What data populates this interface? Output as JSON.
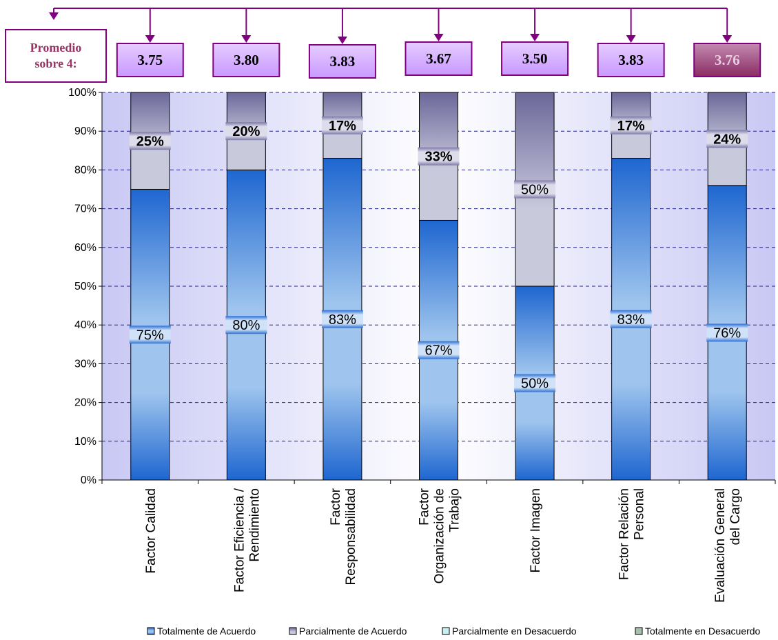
{
  "chart_data": {
    "type": "bar",
    "stacked": true,
    "percent": true,
    "categories": [
      [
        "Factor Calidad"
      ],
      [
        "Factor Eficiencia /",
        "Rendimiento"
      ],
      [
        "Factor",
        "Responsabilidad"
      ],
      [
        "Factor",
        "Organización de",
        "Trabajo"
      ],
      [
        "Factor Imagen"
      ],
      [
        "Factor Relación",
        "Personal"
      ],
      [
        "Evaluación General",
        "del Cargo"
      ]
    ],
    "series": [
      {
        "name": "Totalmente de Acuerdo",
        "values": [
          75,
          80,
          83,
          67,
          50,
          83,
          76
        ],
        "labels": [
          "75%",
          "80%",
          "83%",
          "67%",
          "50%",
          "83%",
          "76%"
        ]
      },
      {
        "name": "Parcialmente de Acuerdo",
        "values": [
          25,
          20,
          17,
          33,
          50,
          17,
          24
        ],
        "labels": [
          "25%",
          "20%",
          "17%",
          "33%",
          "50%",
          "17%",
          "24%"
        ]
      },
      {
        "name": "Parcialmente en Desacuerdo",
        "values": [
          0,
          0,
          0,
          0,
          0,
          0,
          0
        ]
      },
      {
        "name": "Totalmente en Desacuerdo",
        "values": [
          0,
          0,
          0,
          0,
          0,
          0,
          0
        ]
      }
    ],
    "averages_label": [
      "Promedio",
      "sobre 4:"
    ],
    "averages": [
      "3.75",
      "3.80",
      "3.83",
      "3.67",
      "3.50",
      "3.83",
      "3.76"
    ],
    "ylim": [
      0,
      100
    ],
    "yticks": [
      "0%",
      "10%",
      "20%",
      "30%",
      "40%",
      "50%",
      "60%",
      "70%",
      "80%",
      "90%",
      "100%"
    ],
    "grid": true,
    "legend_position": "bottom",
    "colors": {
      "accent": "#800080",
      "avg_box": "#CC99FF",
      "avg_box_last": "#993366",
      "label_text": "#993366",
      "bar_blue_dark": "#1E66D0",
      "bar_blue_light": "#9FC5EE",
      "bar_gray_light": "#C9C9DC",
      "bar_gray_dark": "#6B6799",
      "plot_bg_edge": "#C8C8F4"
    }
  }
}
